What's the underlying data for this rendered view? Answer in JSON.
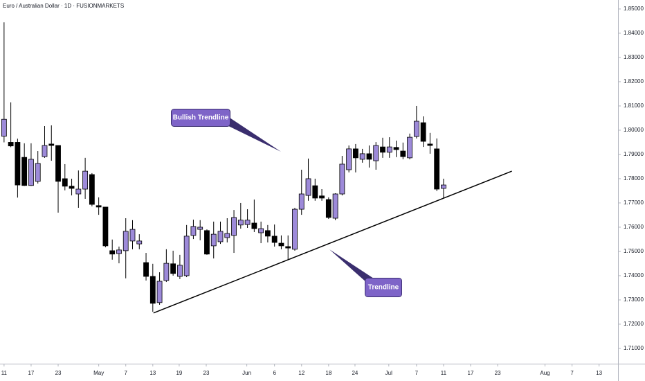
{
  "chart_data": {
    "type": "candlestick",
    "title": "Euro / Australian Dollar · 1D · FUSIONMARKETS",
    "open": [
      1.7975,
      1.795,
      1.795,
      1.7888,
      1.7772,
      1.7789,
      1.7891,
      1.7943,
      1.7937,
      1.78,
      1.7769,
      1.7737,
      1.7757,
      1.7817,
      1.7689,
      1.7683,
      1.7503,
      1.7491,
      1.7503,
      1.7543,
      1.7531,
      1.7454,
      1.7397,
      1.7289,
      1.738,
      1.7449,
      1.7397,
      1.74,
      1.7566,
      1.7591,
      1.7586,
      1.7523,
      1.754,
      1.7557,
      1.7566,
      1.7609,
      1.7611,
      1.7617,
      1.7577,
      1.7586,
      1.7563,
      1.7534,
      1.752,
      1.7509,
      1.7674,
      1.7731,
      1.7771,
      1.7729,
      1.7714,
      1.7637,
      1.7737,
      1.7837,
      1.7923,
      1.788,
      1.7903,
      1.7874,
      1.7931,
      1.7909,
      1.7929,
      1.7914,
      1.7886,
      1.7974,
      1.8031,
      1.7943,
      1.7923,
      1.776
    ],
    "high": [
      1.8445,
      1.8115,
      1.7965,
      1.7946,
      1.7946,
      1.7914,
      1.8017,
      1.802,
      1.7937,
      1.786,
      1.78,
      1.7834,
      1.7886,
      1.7823,
      1.7723,
      1.7683,
      1.7549,
      1.752,
      1.7637,
      1.7629,
      1.7571,
      1.7494,
      1.7449,
      1.7414,
      1.7509,
      1.7503,
      1.7486,
      1.7609,
      1.7631,
      1.7629,
      1.7591,
      1.7623,
      1.7623,
      1.7637,
      1.7671,
      1.77,
      1.7674,
      1.7714,
      1.7623,
      1.7609,
      1.7611,
      1.7566,
      1.7566,
      1.768,
      1.7837,
      1.7883,
      1.78,
      1.7757,
      1.7723,
      1.774,
      1.7894,
      1.7937,
      1.7943,
      1.7923,
      1.7937,
      1.7951,
      1.7969,
      1.7971,
      1.7957,
      1.7949,
      1.7986,
      1.81,
      1.8057,
      1.7989,
      1.7966,
      1.78
    ],
    "low": [
      1.795,
      1.793,
      1.7722,
      1.777,
      1.777,
      1.778,
      1.7886,
      1.7874,
      1.766,
      1.7752,
      1.7731,
      1.768,
      1.7717,
      1.7686,
      1.7651,
      1.7517,
      1.7466,
      1.7451,
      1.7389,
      1.7509,
      1.7509,
      1.738,
      1.7251,
      1.728,
      1.7374,
      1.74,
      1.7386,
      1.7394,
      1.7551,
      1.7546,
      1.7486,
      1.7471,
      1.7531,
      1.7537,
      1.7494,
      1.7594,
      1.7597,
      1.758,
      1.7534,
      1.7537,
      1.752,
      1.7509,
      1.7466,
      1.7503,
      1.7651,
      1.7709,
      1.7709,
      1.7709,
      1.7634,
      1.7629,
      1.7731,
      1.7826,
      1.7826,
      1.7866,
      1.7846,
      1.7837,
      1.7886,
      1.7886,
      1.7889,
      1.788,
      1.788,
      1.7966,
      1.7931,
      1.7903,
      1.7749,
      1.772
    ],
    "close": [
      1.8045,
      1.7935,
      1.7774,
      1.7772,
      1.788,
      1.7863,
      1.7937,
      1.7937,
      1.7789,
      1.7769,
      1.776,
      1.7757,
      1.7831,
      1.7694,
      1.7683,
      1.7523,
      1.7489,
      1.7506,
      1.7583,
      1.7591,
      1.7543,
      1.7397,
      1.7286,
      1.7377,
      1.7451,
      1.7409,
      1.7443,
      1.7563,
      1.7603,
      1.76,
      1.7489,
      1.7571,
      1.7583,
      1.7574,
      1.764,
      1.7629,
      1.7629,
      1.7594,
      1.7594,
      1.7563,
      1.7537,
      1.7523,
      1.7514,
      1.7674,
      1.7737,
      1.78,
      1.772,
      1.772,
      1.764,
      1.7737,
      1.786,
      1.7923,
      1.7886,
      1.7903,
      1.788,
      1.7937,
      1.7909,
      1.7931,
      1.792,
      1.7891,
      1.7971,
      1.8037,
      1.7954,
      1.7937,
      1.7757,
      1.7774
    ],
    "up_color": "#9d8ad9",
    "down_color": "#000000",
    "xlim": [
      -0.6,
      90.8
    ],
    "xticks": [
      {
        "value": 0,
        "label": "11"
      },
      {
        "value": 4,
        "label": "17"
      },
      {
        "value": 8,
        "label": "23"
      },
      {
        "value": 14,
        "label": "May"
      },
      {
        "value": 18,
        "label": "7"
      },
      {
        "value": 22,
        "label": "13"
      },
      {
        "value": 25.9,
        "label": "19"
      },
      {
        "value": 29.9,
        "label": "23"
      },
      {
        "value": 35.9,
        "label": "Jun"
      },
      {
        "value": 40,
        "label": "6"
      },
      {
        "value": 44,
        "label": "12"
      },
      {
        "value": 48,
        "label": "18"
      },
      {
        "value": 51.9,
        "label": "24"
      },
      {
        "value": 56.9,
        "label": "Jul"
      },
      {
        "value": 61,
        "label": "7"
      },
      {
        "value": 65,
        "label": "11"
      },
      {
        "value": 69,
        "label": "17"
      },
      {
        "value": 73,
        "label": "23"
      },
      {
        "value": 80,
        "label": "Aug"
      },
      {
        "value": 84,
        "label": "7"
      },
      {
        "value": 88,
        "label": "13"
      }
    ],
    "ylim": [
      1.7037,
      1.8537
    ],
    "yticks": [
      {
        "value": 1.71,
        "label": "1.71000"
      },
      {
        "value": 1.72,
        "label": "1.72000"
      },
      {
        "value": 1.73,
        "label": "1.73000"
      },
      {
        "value": 1.74,
        "label": "1.74000"
      },
      {
        "value": 1.75,
        "label": "1.75000"
      },
      {
        "value": 1.76,
        "label": "1.76000"
      },
      {
        "value": 1.77,
        "label": "1.77000"
      },
      {
        "value": 1.78,
        "label": "1.78000"
      },
      {
        "value": 1.79,
        "label": "1.79000"
      },
      {
        "value": 1.8,
        "label": "1.80000"
      },
      {
        "value": 1.81,
        "label": "1.81000"
      },
      {
        "value": 1.82,
        "label": "1.82000"
      },
      {
        "value": 1.83,
        "label": "1.83000"
      },
      {
        "value": 1.84,
        "label": "1.84000"
      },
      {
        "value": 1.85,
        "label": "1.85000"
      }
    ],
    "trendline": {
      "x": [
        22.1,
        75.1
      ],
      "y": [
        1.7246,
        1.7831
      ],
      "color": "#000000"
    },
    "annotations": [
      "Bullish Trendline",
      "Trendline"
    ]
  }
}
